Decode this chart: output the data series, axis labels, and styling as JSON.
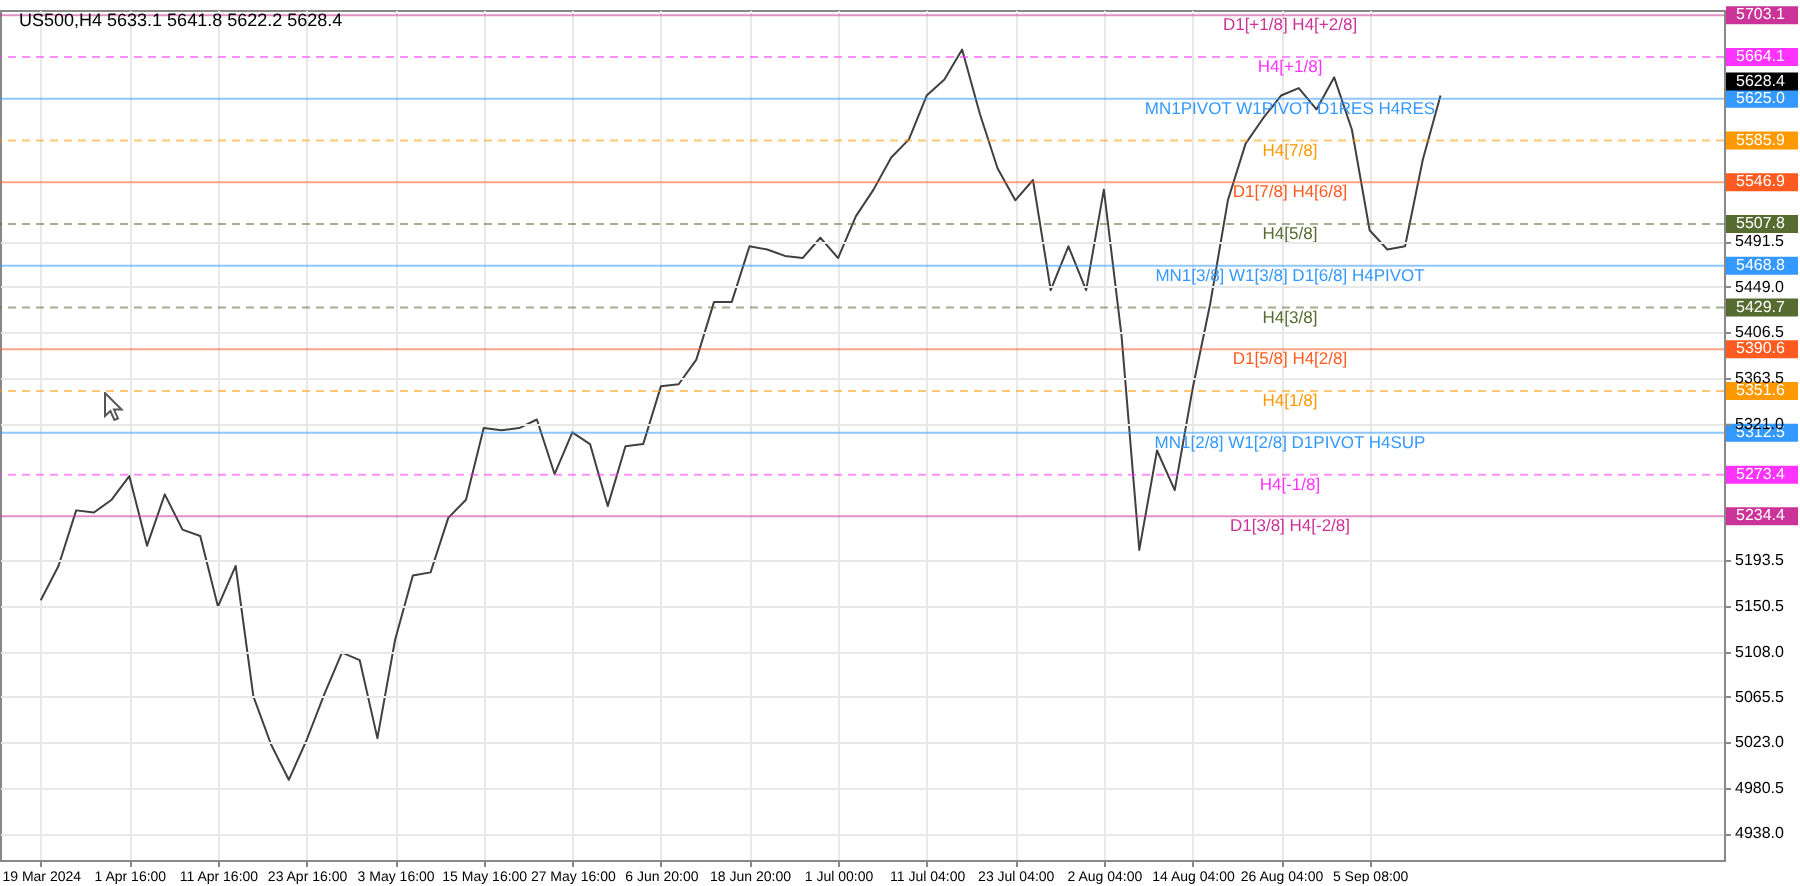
{
  "chart_data": {
    "type": "line",
    "title": "US500,H4  5633.1 5641.8 5622.2 5628.4",
    "categories": [
      "19 Mar 2024",
      null,
      null,
      null,
      null,
      "1 Apr 16:00",
      null,
      null,
      null,
      null,
      "11 Apr 16:00",
      null,
      null,
      null,
      null,
      "23 Apr 16:00",
      null,
      null,
      null,
      null,
      "3 May 16:00",
      null,
      null,
      null,
      null,
      "15 May 16:00",
      null,
      null,
      null,
      null,
      "27 May 16:00",
      null,
      null,
      null,
      null,
      "6 Jun 20:00",
      null,
      null,
      null,
      null,
      "18 Jun 20:00",
      null,
      null,
      null,
      null,
      "1 Jul 00:00",
      null,
      null,
      null,
      null,
      "11 Jul 04:00",
      null,
      null,
      null,
      null,
      "23 Jul 04:00",
      null,
      null,
      null,
      null,
      "2 Aug 04:00",
      null,
      null,
      null,
      null,
      "14 Aug 04:00",
      null,
      null,
      null,
      null,
      "26 Aug 04:00",
      null,
      null,
      null,
      null,
      "5 Sep 08:00",
      null,
      null,
      null,
      null,
      null,
      null,
      null,
      null,
      null,
      null,
      null,
      null,
      null,
      null,
      null,
      null,
      null,
      null,
      null,
      null
    ],
    "series": [
      {
        "color": "#404040",
        "values": [
          5156,
          5188,
          5240,
          5238,
          5250,
          5272,
          5207,
          5255,
          5222,
          5216,
          5150,
          5188,
          5066,
          5021,
          4988,
          5025,
          5068,
          5107,
          5100,
          5027,
          5119,
          5179,
          5182,
          5233,
          5250,
          5317,
          5315,
          5317,
          5325,
          5274,
          5313,
          5302,
          5244,
          5300,
          5302,
          5356,
          5358,
          5381,
          5435,
          5435,
          5487,
          5484,
          5478,
          5476,
          5495,
          5476,
          5515,
          5540,
          5570,
          5587,
          5628,
          5643,
          5671,
          5611,
          5560,
          5530,
          5549,
          5446,
          5487,
          5446,
          5540,
          5403,
          5203,
          5296,
          5259,
          5353,
          5433,
          5530,
          5583,
          5607,
          5628,
          5635,
          5615,
          5645,
          5596,
          5502,
          5484,
          5487,
          5568,
          5628,
          null,
          null,
          null,
          null,
          null,
          null,
          null,
          null,
          null,
          null,
          null,
          null,
          null,
          null,
          null,
          null
        ]
      }
    ],
    "ylim": [
      4913,
      5708
    ],
    "yticks": [
      5491.5,
      {
        "value": 5449,
        "label": "5449.0"
      },
      5406.5,
      5363.5,
      {
        "value": 5321,
        "label": "5321.0"
      },
      5193.5,
      5150.5,
      {
        "value": 5108,
        "label": "5108.0"
      },
      5065.5,
      {
        "value": 5023,
        "label": "5023.0"
      },
      4980.5,
      {
        "value": 4938,
        "label": "4938.0"
      }
    ],
    "grid": true,
    "ref_lines": [
      {
        "axis": "y",
        "value": 5703.1,
        "label": "5703.1",
        "color": "#cc3399",
        "line_style": "solid"
      },
      {
        "axis": "y",
        "value": 5664.1,
        "label": "5664.1",
        "color": "#ff33ff",
        "line_style": "dashed"
      },
      {
        "axis": "y",
        "value": 5625,
        "label": "5625.0",
        "color": "#3399ff",
        "line_style": "solid"
      },
      {
        "axis": "y",
        "value": 5585.9,
        "label": "5585.9",
        "color": "#ff9900",
        "line_style": "dashed"
      },
      {
        "axis": "y",
        "value": 5546.9,
        "label": "5546.9",
        "color": "#ff5a1f",
        "line_style": "solid"
      },
      {
        "axis": "y",
        "value": 5507.8,
        "label": "5507.8",
        "color": "#556b2f",
        "line_style": "dashed"
      },
      {
        "axis": "y",
        "value": 5468.8,
        "label": "5468.8",
        "color": "#3399ff",
        "line_style": "solid"
      },
      {
        "axis": "y",
        "value": 5429.7,
        "label": "5429.7",
        "color": "#556b2f",
        "line_style": "dashed"
      },
      {
        "axis": "y",
        "value": 5390.6,
        "label": "5390.6",
        "color": "#ff5a1f",
        "line_style": "solid"
      },
      {
        "axis": "y",
        "value": 5351.6,
        "label": "5351.6",
        "color": "#ff9900",
        "line_style": "dashed"
      },
      {
        "axis": "y",
        "value": 5312.5,
        "label": "5312.5",
        "color": "#3399ff",
        "line_style": "solid"
      },
      {
        "axis": "y",
        "value": 5273.4,
        "label": "5273.4",
        "color": "#ff33ff",
        "line_style": "dashed"
      },
      {
        "axis": "y",
        "value": 5234.4,
        "label": "5234.4",
        "color": "#cc3399",
        "line_style": "solid"
      }
    ],
    "annotations": [
      {
        "text": "D1[+1/8] H4[+2/8]",
        "y": 5703.1
      },
      {
        "text": "H4[+1/8]",
        "y": 5664.1
      },
      {
        "text": "MN1PIVOT W1PIVOT D1RES H4RES",
        "y": 5625
      },
      {
        "text": "H4[7/8]",
        "y": 5585.9
      },
      {
        "text": "D1[7/8] H4[6/8]",
        "y": 5546.9
      },
      {
        "text": "H4[5/8]",
        "y": 5507.8
      },
      {
        "text": "MN1[3/8] W1[3/8] D1[6/8] H4PIVOT",
        "y": 5468.8
      },
      {
        "text": "H4[3/8]",
        "y": 5429.7
      },
      {
        "text": "D1[5/8] H4[2/8]",
        "y": 5390.6
      },
      {
        "text": "H4[1/8]",
        "y": 5351.6
      },
      {
        "text": "MN1[2/8] W1[2/8] D1PIVOT H4SUP",
        "y": 5312.5
      },
      {
        "text": "H4[-1/8]",
        "y": 5273.4
      },
      {
        "text": "D1[3/8] H4[-2/8]",
        "y": 5234.4
      },
      "5628.4"
    ]
  }
}
